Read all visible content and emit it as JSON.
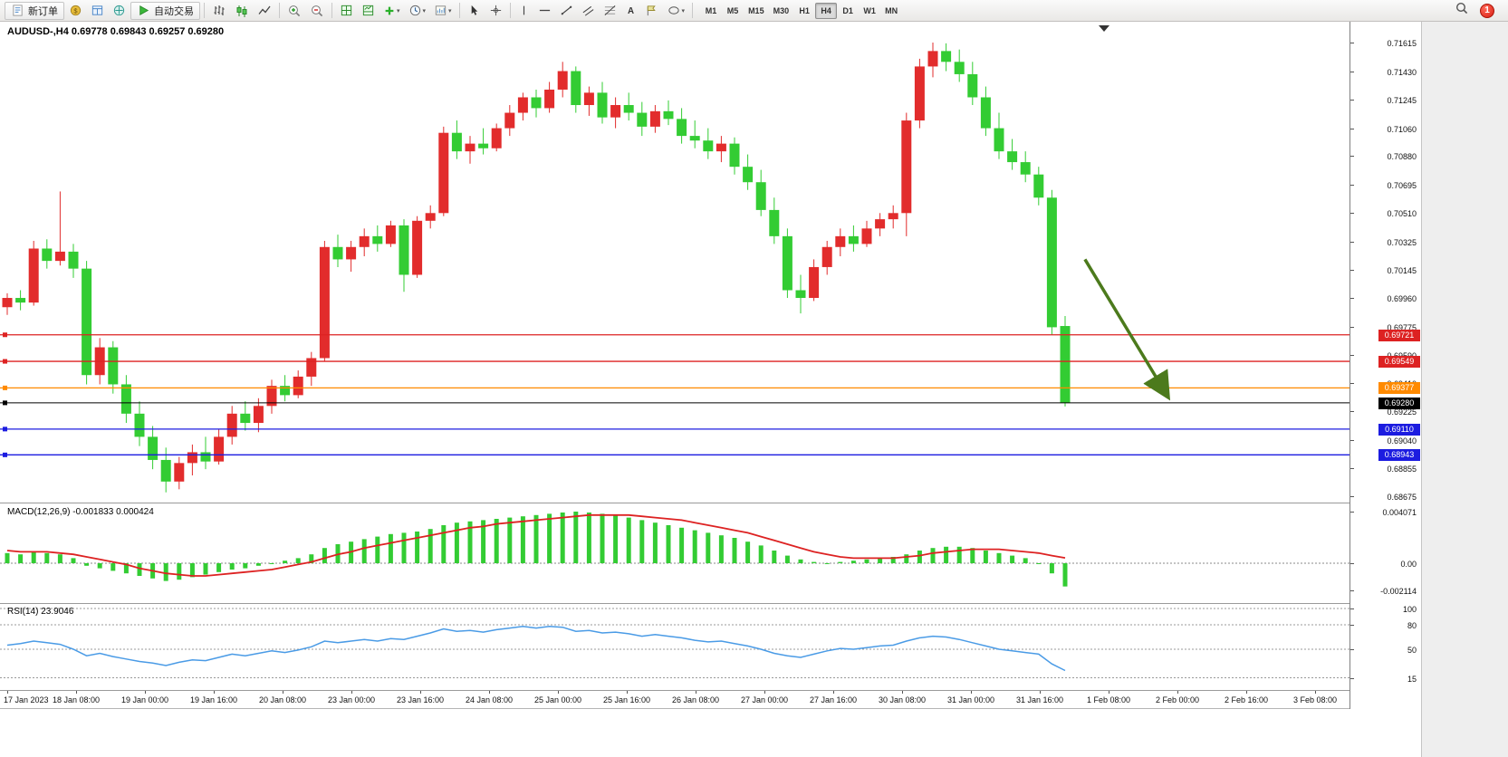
{
  "toolbar": {
    "items": [
      {
        "t": "btn",
        "name": "new-order-button",
        "icon": "new-order-icon",
        "label": "新订单"
      },
      {
        "t": "ico",
        "name": "market-watch-button",
        "icon": "market-watch-icon"
      },
      {
        "t": "ico",
        "name": "data-window-button",
        "icon": "data-window-icon"
      },
      {
        "t": "ico",
        "name": "navigator-button",
        "icon": "navigator-icon"
      },
      {
        "t": "btn",
        "name": "auto-trading-button",
        "icon": "autotrade-play-icon",
        "label": "自动交易"
      },
      {
        "t": "sep"
      },
      {
        "t": "ico",
        "name": "bar-chart-button",
        "icon": "bar-chart-icon"
      },
      {
        "t": "ico",
        "name": "candlestick-chart-button",
        "icon": "candlestick-chart-icon"
      },
      {
        "t": "ico",
        "name": "line-chart-button",
        "icon": "line-chart-icon"
      },
      {
        "t": "sep"
      },
      {
        "t": "ico",
        "name": "zoom-in-button",
        "icon": "zoom-in-icon"
      },
      {
        "t": "ico",
        "name": "zoom-out-button",
        "icon": "zoom-out-icon"
      },
      {
        "t": "sep"
      },
      {
        "t": "ico",
        "name": "tile-windows-button",
        "icon": "tile-windows-icon"
      },
      {
        "t": "ico",
        "name": "indicator-window-button",
        "icon": "indicator-window-icon"
      },
      {
        "t": "ico",
        "name": "add-indicator-button",
        "icon": "add-indicator-icon",
        "caret": true
      },
      {
        "t": "ico",
        "name": "period-selector-button",
        "icon": "period-clock-icon",
        "caret": true
      },
      {
        "t": "ico",
        "name": "template-button",
        "icon": "template-icon",
        "caret": true
      },
      {
        "t": "sep"
      },
      {
        "t": "ico",
        "name": "cursor-button",
        "icon": "cursor-icon"
      },
      {
        "t": "ico",
        "name": "crosshair-button",
        "icon": "crosshair-icon"
      },
      {
        "t": "sep"
      },
      {
        "t": "ico",
        "name": "vertical-line-button",
        "icon": "vertical-line-icon"
      },
      {
        "t": "ico",
        "name": "horizontal-line-button",
        "icon": "horizontal-line-icon"
      },
      {
        "t": "ico",
        "name": "trendline-button",
        "icon": "trendline-icon"
      },
      {
        "t": "ico",
        "name": "channel-button",
        "icon": "channel-icon"
      },
      {
        "t": "ico",
        "name": "fibonacci-button",
        "icon": "fibonacci-icon"
      },
      {
        "t": "ico",
        "name": "text-button",
        "icon": "text-icon"
      },
      {
        "t": "ico",
        "name": "label-button",
        "icon": "label-icon"
      },
      {
        "t": "ico",
        "name": "shapes-button",
        "icon": "shapes-icon",
        "caret": true
      },
      {
        "t": "sep"
      }
    ],
    "timeframes": {
      "items": [
        "M1",
        "M5",
        "M15",
        "M30",
        "H1",
        "H4",
        "D1",
        "W1",
        "MN"
      ],
      "active": "H4"
    },
    "notification_count": "1"
  },
  "chart": {
    "symbol_title": "AUDUSD-,H4",
    "ohlc_text": "0.69778 0.69843 0.69257 0.69280",
    "price_axis_labels": [
      "0.71615",
      "0.71430",
      "0.71245",
      "0.71060",
      "0.70880",
      "0.70695",
      "0.70510",
      "0.70325",
      "0.70145",
      "0.69960",
      "0.69775",
      "0.69590",
      "0.69410",
      "0.69225",
      "0.69040",
      "0.68855",
      "0.68675"
    ],
    "price_tags": [
      {
        "label": "0.69721",
        "price": 0.69721,
        "color": "#dd2222"
      },
      {
        "label": "0.69549",
        "price": 0.69549,
        "color": "#dd2222"
      },
      {
        "label": "0.69377",
        "price": 0.69377,
        "color": "#ff8a00"
      },
      {
        "label": "0.69280",
        "price": 0.6928,
        "color": "#000000"
      },
      {
        "label": "0.69110",
        "price": 0.6911,
        "color": "#1c1ce0"
      },
      {
        "label": "0.68943",
        "price": 0.68943,
        "color": "#1c1ce0"
      }
    ],
    "time_labels": [
      "17 Jan 2023",
      "18 Jan 08:00",
      "19 Jan 00:00",
      "19 Jan 16:00",
      "20 Jan 08:00",
      "23 Jan 00:00",
      "23 Jan 16:00",
      "24 Jan 08:00",
      "25 Jan 00:00",
      "25 Jan 16:00",
      "26 Jan 08:00",
      "27 Jan 00:00",
      "27 Jan 16:00",
      "30 Jan 08:00",
      "31 Jan 00:00",
      "31 Jan 16:00",
      "1 Feb 08:00",
      "2 Feb 00:00",
      "2 Feb 16:00",
      "3 Feb 08:00"
    ]
  },
  "macd_panel": {
    "title": "MACD(12,26,9)",
    "value_main": "-0.001833",
    "value_signal": "0.000424",
    "axis_labels": [
      "0.004071",
      "0.00",
      "-0.002114"
    ]
  },
  "rsi_panel": {
    "title": "RSI(14)",
    "value": "23.9046",
    "axis_labels": [
      "100",
      "80",
      "50",
      "15"
    ]
  },
  "chart_data": [
    {
      "type": "candlestick",
      "title": "AUDUSD- H4",
      "ylim": [
        0.68675,
        0.71615
      ],
      "up_color": "#e22c2c",
      "down_color": "#33cc33",
      "ohlc": [
        [
          0.699,
          0.6999,
          0.6985,
          0.6996
        ],
        [
          0.6996,
          0.7001,
          0.6988,
          0.6993
        ],
        [
          0.6993,
          0.7033,
          0.6991,
          0.7028
        ],
        [
          0.7028,
          0.7034,
          0.7015,
          0.702
        ],
        [
          0.702,
          0.7065,
          0.7017,
          0.7026
        ],
        [
          0.7026,
          0.7031,
          0.7009,
          0.7015
        ],
        [
          0.7015,
          0.702,
          0.694,
          0.6946
        ],
        [
          0.6946,
          0.697,
          0.694,
          0.6964
        ],
        [
          0.6964,
          0.6968,
          0.6934,
          0.694
        ],
        [
          0.694,
          0.6946,
          0.6915,
          0.6921
        ],
        [
          0.6921,
          0.6929,
          0.69,
          0.6906
        ],
        [
          0.6906,
          0.6913,
          0.6885,
          0.6891
        ],
        [
          0.6891,
          0.6899,
          0.687,
          0.6877
        ],
        [
          0.6877,
          0.6893,
          0.6872,
          0.6889
        ],
        [
          0.6889,
          0.6901,
          0.6881,
          0.6896
        ],
        [
          0.6896,
          0.6906,
          0.6885,
          0.689
        ],
        [
          0.689,
          0.6911,
          0.6888,
          0.6906
        ],
        [
          0.6906,
          0.6926,
          0.6901,
          0.6921
        ],
        [
          0.6921,
          0.6929,
          0.691,
          0.6915
        ],
        [
          0.6915,
          0.6931,
          0.6909,
          0.6926
        ],
        [
          0.6926,
          0.6943,
          0.6921,
          0.6939
        ],
        [
          0.6939,
          0.6946,
          0.6929,
          0.6933
        ],
        [
          0.6933,
          0.6949,
          0.6931,
          0.6945
        ],
        [
          0.6945,
          0.6961,
          0.6939,
          0.6957
        ],
        [
          0.6957,
          0.7033,
          0.6955,
          0.7029
        ],
        [
          0.7029,
          0.7037,
          0.7016,
          0.7021
        ],
        [
          0.7021,
          0.7033,
          0.7013,
          0.7029
        ],
        [
          0.7029,
          0.7041,
          0.7023,
          0.7036
        ],
        [
          0.7036,
          0.7043,
          0.7026,
          0.7031
        ],
        [
          0.7031,
          0.7046,
          0.7029,
          0.7043
        ],
        [
          0.7043,
          0.7047,
          0.7,
          0.7011
        ],
        [
          0.7011,
          0.7049,
          0.7009,
          0.7046
        ],
        [
          0.7046,
          0.7056,
          0.7041,
          0.7051
        ],
        [
          0.7051,
          0.7107,
          0.7049,
          0.7103
        ],
        [
          0.7103,
          0.7111,
          0.7086,
          0.7091
        ],
        [
          0.7091,
          0.7101,
          0.7083,
          0.7096
        ],
        [
          0.7096,
          0.7106,
          0.7089,
          0.7093
        ],
        [
          0.7093,
          0.7109,
          0.7091,
          0.7106
        ],
        [
          0.7106,
          0.7121,
          0.7101,
          0.7116
        ],
        [
          0.7116,
          0.7129,
          0.7111,
          0.7126
        ],
        [
          0.7126,
          0.7131,
          0.7113,
          0.7119
        ],
        [
          0.7119,
          0.7136,
          0.7116,
          0.7131
        ],
        [
          0.7131,
          0.7149,
          0.7126,
          0.7143
        ],
        [
          0.7143,
          0.7146,
          0.7116,
          0.7121
        ],
        [
          0.7121,
          0.7133,
          0.7114,
          0.7129
        ],
        [
          0.7129,
          0.7136,
          0.7109,
          0.7113
        ],
        [
          0.7113,
          0.7126,
          0.7106,
          0.7121
        ],
        [
          0.7121,
          0.7129,
          0.7111,
          0.7116
        ],
        [
          0.7116,
          0.7123,
          0.7101,
          0.7107
        ],
        [
          0.7107,
          0.7121,
          0.7103,
          0.7117
        ],
        [
          0.7117,
          0.7124,
          0.7108,
          0.7112
        ],
        [
          0.7112,
          0.7119,
          0.7096,
          0.7101
        ],
        [
          0.7101,
          0.7111,
          0.7093,
          0.7098
        ],
        [
          0.7098,
          0.7106,
          0.7086,
          0.7091
        ],
        [
          0.7091,
          0.7101,
          0.7084,
          0.7096
        ],
        [
          0.7096,
          0.71,
          0.7076,
          0.7081
        ],
        [
          0.7081,
          0.7089,
          0.7066,
          0.7071
        ],
        [
          0.7071,
          0.7079,
          0.7049,
          0.7053
        ],
        [
          0.7053,
          0.7061,
          0.7031,
          0.7036
        ],
        [
          0.7036,
          0.7041,
          0.6996,
          0.7001
        ],
        [
          0.7001,
          0.7011,
          0.6986,
          0.6996
        ],
        [
          0.6996,
          0.7021,
          0.6994,
          0.7016
        ],
        [
          0.7016,
          0.7033,
          0.7011,
          0.7029
        ],
        [
          0.7029,
          0.7041,
          0.7023,
          0.7036
        ],
        [
          0.7036,
          0.7043,
          0.7026,
          0.7031
        ],
        [
          0.7031,
          0.7046,
          0.7029,
          0.7041
        ],
        [
          0.7041,
          0.7051,
          0.7036,
          0.7047
        ],
        [
          0.7047,
          0.7056,
          0.7041,
          0.7051
        ],
        [
          0.7051,
          0.7116,
          0.7036,
          0.7111
        ],
        [
          0.7111,
          0.7151,
          0.7106,
          0.7146
        ],
        [
          0.7146,
          0.71615,
          0.7139,
          0.7156
        ],
        [
          0.7156,
          0.7161,
          0.7143,
          0.7149
        ],
        [
          0.7149,
          0.7157,
          0.7136,
          0.7141
        ],
        [
          0.7141,
          0.7149,
          0.7121,
          0.7126
        ],
        [
          0.7126,
          0.7133,
          0.7101,
          0.7106
        ],
        [
          0.7106,
          0.7116,
          0.7086,
          0.7091
        ],
        [
          0.7091,
          0.7099,
          0.7079,
          0.7084
        ],
        [
          0.7084,
          0.7091,
          0.7071,
          0.7076
        ],
        [
          0.7076,
          0.7081,
          0.7056,
          0.7061
        ],
        [
          0.7061,
          0.7066,
          0.6972,
          0.6977
        ],
        [
          0.69778,
          0.69843,
          0.69257,
          0.6928
        ]
      ],
      "annotations": [
        {
          "type": "arrow",
          "x1_bar": 81.5,
          "price1": 0.7021,
          "x2_bar": 87.7,
          "price2": 0.6933,
          "color": "#4c7a1c"
        }
      ]
    },
    {
      "type": "macd",
      "title": "MACD(12,26,9)",
      "ylim": [
        -0.002114,
        0.004071
      ],
      "histogram_color": "#33cc33",
      "signal_color": "#dd2222",
      "histogram": [
        0.0008,
        0.0007,
        0.0009,
        0.0008,
        0.0007,
        0.0004,
        -0.0002,
        -0.0004,
        -0.0006,
        -0.0008,
        -0.001,
        -0.0012,
        -0.0014,
        -0.0013,
        -0.0011,
        -0.0009,
        -0.0007,
        -0.0005,
        -0.0004,
        -0.0002,
        0.0,
        0.0002,
        0.0004,
        0.0007,
        0.0012,
        0.0015,
        0.0017,
        0.0019,
        0.0021,
        0.0023,
        0.0024,
        0.0025,
        0.0027,
        0.003,
        0.0032,
        0.0033,
        0.0034,
        0.0035,
        0.0036,
        0.0037,
        0.0038,
        0.0039,
        0.004,
        0.004071,
        0.004,
        0.0039,
        0.0038,
        0.0036,
        0.0034,
        0.0032,
        0.003,
        0.0028,
        0.0026,
        0.0024,
        0.0022,
        0.002,
        0.0017,
        0.0014,
        0.001,
        0.0006,
        0.0003,
        0.0001,
        0.0,
        0.0001,
        0.0002,
        0.0003,
        0.0004,
        0.0005,
        0.0007,
        0.001,
        0.0012,
        0.0013,
        0.0013,
        0.0012,
        0.001,
        0.0008,
        0.0006,
        0.0004,
        0.0,
        -0.0008,
        -0.001833
      ],
      "signal": [
        0.001,
        0.0009,
        0.0009,
        0.0009,
        0.0008,
        0.0007,
        0.0005,
        0.0003,
        0.0001,
        -0.0001,
        -0.0004,
        -0.0006,
        -0.0008,
        -0.0009,
        -0.001,
        -0.001,
        -0.0009,
        -0.0008,
        -0.0007,
        -0.0006,
        -0.0005,
        -0.0003,
        -0.0001,
        0.0001,
        0.0004,
        0.0007,
        0.0009,
        0.0012,
        0.0014,
        0.0016,
        0.0018,
        0.002,
        0.0022,
        0.0024,
        0.0026,
        0.0028,
        0.0029,
        0.0031,
        0.0032,
        0.0033,
        0.0034,
        0.0035,
        0.0036,
        0.0037,
        0.0038,
        0.0038,
        0.0038,
        0.0038,
        0.0037,
        0.0036,
        0.0035,
        0.0034,
        0.0032,
        0.003,
        0.0028,
        0.0026,
        0.0024,
        0.0021,
        0.0018,
        0.0015,
        0.0012,
        0.0009,
        0.0007,
        0.0005,
        0.0004,
        0.0004,
        0.0004,
        0.0004,
        0.0005,
        0.0006,
        0.0008,
        0.0009,
        0.001,
        0.0011,
        0.0011,
        0.0011,
        0.001,
        0.0009,
        0.0008,
        0.0006,
        0.000424
      ]
    },
    {
      "type": "line",
      "title": "RSI(14)",
      "ylim": [
        0,
        100
      ],
      "levels": [
        100,
        80,
        50,
        15
      ],
      "color": "#4a9be6",
      "values": [
        55,
        57,
        60,
        58,
        56,
        50,
        42,
        45,
        41,
        38,
        35,
        33,
        30,
        34,
        37,
        36,
        40,
        44,
        42,
        45,
        48,
        46,
        49,
        53,
        60,
        58,
        60,
        62,
        60,
        63,
        62,
        66,
        70,
        75,
        72,
        73,
        71,
        74,
        76,
        78,
        76,
        78,
        77,
        72,
        73,
        70,
        71,
        69,
        66,
        68,
        66,
        64,
        61,
        59,
        60,
        57,
        54,
        50,
        45,
        42,
        40,
        44,
        48,
        51,
        50,
        52,
        54,
        55,
        60,
        64,
        66,
        65,
        62,
        58,
        54,
        50,
        48,
        46,
        44,
        32,
        23.9
      ]
    }
  ]
}
